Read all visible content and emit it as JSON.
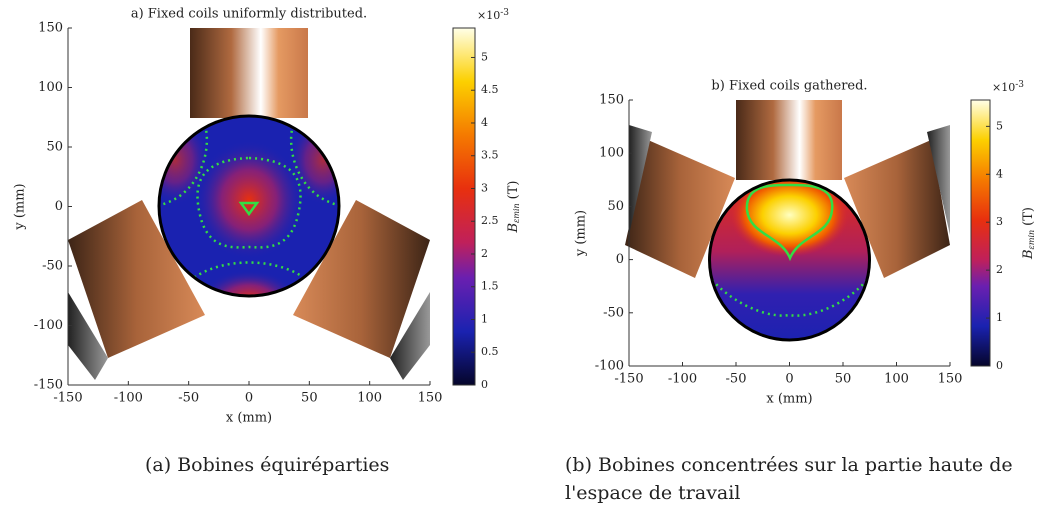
{
  "chart_data": [
    {
      "type": "heatmap",
      "title": "a) Fixed coils uniformly distributed.",
      "xlabel": "x (mm)",
      "ylabel": "y (mm)",
      "xlim": [
        -150,
        150
      ],
      "xticks": [
        -150,
        -100,
        -50,
        0,
        50,
        100,
        150
      ],
      "ylim": [
        -150,
        150
      ],
      "yticks": [
        -150,
        -100,
        -50,
        0,
        50,
        100,
        150
      ],
      "colorbar_label": "B",
      "colorbar_label_sub": "εmin",
      "colorbar_unit": "(T)",
      "colorbar_exponent": "×10",
      "colorbar_exponent_power": "-3",
      "clim": [
        0,
        5.45
      ],
      "cticks": [
        0,
        0.5,
        1,
        1.5,
        2,
        2.5,
        3,
        3.5,
        4,
        4.5,
        5
      ],
      "caption": [
        "(a) Bobines équiréparties"
      ]
    },
    {
      "type": "heatmap",
      "title": "b) Fixed coils gathered.",
      "xlabel": "x (mm)",
      "ylabel": "y (mm)",
      "xlim": [
        -150,
        150
      ],
      "xticks": [
        -150,
        -100,
        -50,
        0,
        50,
        100,
        150
      ],
      "ylim": [
        -100,
        150
      ],
      "yticks": [
        -100,
        -50,
        0,
        50,
        100,
        150
      ],
      "colorbar_label": "B",
      "colorbar_label_sub": "εmin",
      "colorbar_unit": "(T)",
      "colorbar_exponent": "×10",
      "colorbar_exponent_power": "-3",
      "clim": [
        0,
        5.55
      ],
      "cticks": [
        0,
        1,
        2,
        3,
        4,
        5
      ],
      "caption": [
        "(b) Bobines concentrées sur la partie haute de",
        "l'espace de travail"
      ]
    }
  ]
}
